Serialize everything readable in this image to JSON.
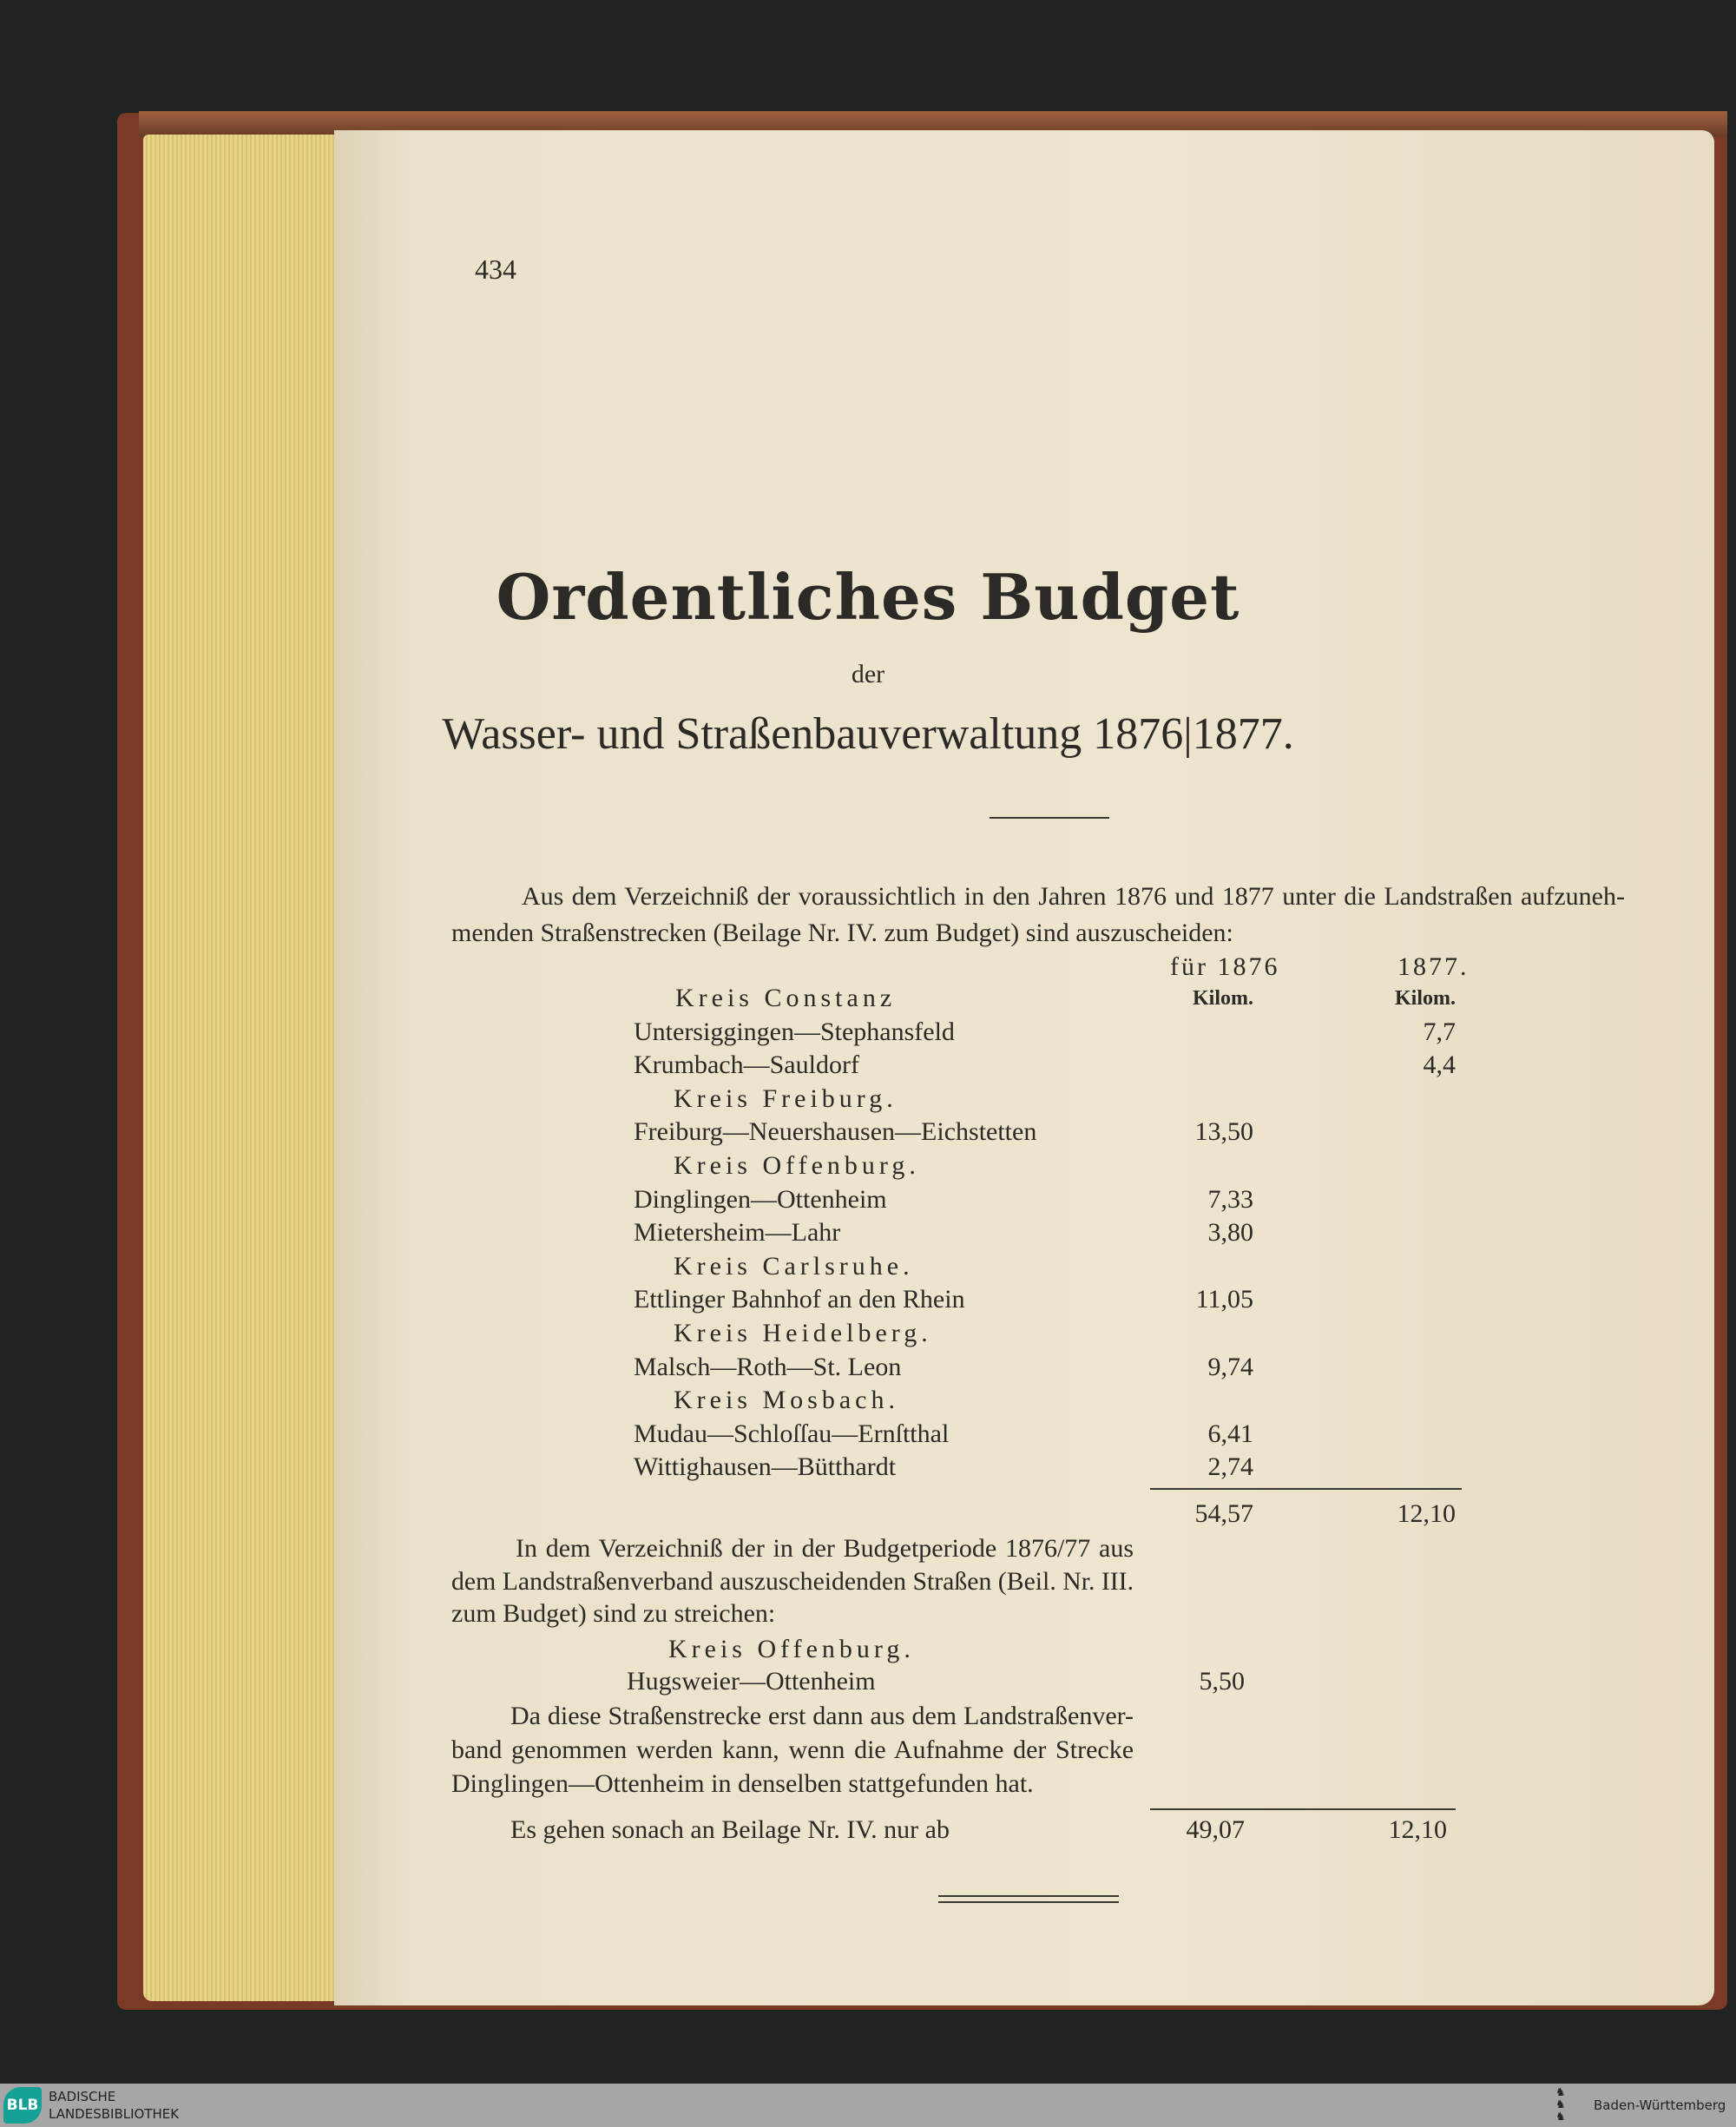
{
  "page_number": "434",
  "title": "Ordentliches Budget",
  "title_connector": "der",
  "subtitle": "Wasser- und Straßenbauverwaltung 1876|1877.",
  "intro_lines": [
    "Aus dem Verzeichniß der voraussichtlich in den Jahren 1876 und 1877 unter die Landstraßen aufzuneh-",
    "menden Straßenstrecken (Beilage Nr. IV. zum Budget) sind auszuscheiden:"
  ],
  "columns": {
    "col1876": "für 1876",
    "col1877": "1877.",
    "unit1876": "Kilom.",
    "unit1877": "Kilom."
  },
  "table": [
    {
      "type": "kreis",
      "label": "Kreis Constanz"
    },
    {
      "type": "row",
      "label": "Untersiggingen—Stephansfeld",
      "v1876": "",
      "v1877": "7,7"
    },
    {
      "type": "row",
      "label": "Krumbach—Sauldorf",
      "v1876": "",
      "v1877": "4,4"
    },
    {
      "type": "kreis",
      "label": "Kreis Freiburg."
    },
    {
      "type": "row",
      "label": "Freiburg—Neuershausen—Eichstetten",
      "v1876": "13,50",
      "v1877": ""
    },
    {
      "type": "kreis",
      "label": "Kreis Offenburg."
    },
    {
      "type": "row",
      "label": "Dinglingen—Ottenheim",
      "v1876": "7,33",
      "v1877": ""
    },
    {
      "type": "row",
      "label": "Mietersheim—Lahr",
      "v1876": "3,80",
      "v1877": ""
    },
    {
      "type": "kreis",
      "label": "Kreis Carlsruhe."
    },
    {
      "type": "row",
      "label": "Ettlinger Bahnhof an den Rhein",
      "v1876": "11,05",
      "v1877": ""
    },
    {
      "type": "kreis",
      "label": "Kreis Heidelberg."
    },
    {
      "type": "row",
      "label": "Malsch—Roth—St. Leon",
      "v1876": "9,74",
      "v1877": ""
    },
    {
      "type": "kreis",
      "label": "Kreis Mosbach."
    },
    {
      "type": "row",
      "label": "Mudau—Schloſſau—Ernſtthal",
      "v1876": "6,41",
      "v1877": ""
    },
    {
      "type": "row",
      "label": "Wittighausen—Bütthardt",
      "v1876": "2,74",
      "v1877": ""
    }
  ],
  "sum": {
    "v1876": "54,57",
    "v1877": "12,10"
  },
  "second_para_lines": [
    "In dem Verzeichniß der in der Budgetperiode 1876/77 aus",
    "dem Landstraßenverband auszuscheidenden Straßen (Beil. Nr. III.",
    "zum Budget) sind zu streichen:"
  ],
  "second_kreis": "Kreis Offenburg.",
  "second_row": {
    "label": "Hugsweier—Ottenheim",
    "v1876": "5,50"
  },
  "third_para_lines": [
    "Da diese Straßenstrecke erst dann aus dem Landstraßenver-",
    "band genommen werden kann, wenn die Aufnahme der Strecke",
    "Dinglingen—Ottenheim in denselben stattgefunden hat."
  ],
  "final": {
    "label": "Es gehen sonach an Beilage Nr. IV. nur ab",
    "v1876": "49,07",
    "v1877": "12,10"
  },
  "footer": {
    "logo_text": "BLB",
    "library_line1": "BADISCHE",
    "library_line2": "LANDESBIBLIOTHEK",
    "state": "Baden-Württemberg"
  },
  "colors": {
    "page": "#eee5cf",
    "ink": "#2b2a26",
    "background": "#1f2321",
    "footer": "#a6a6a6",
    "blb_accent": "#14a096"
  }
}
